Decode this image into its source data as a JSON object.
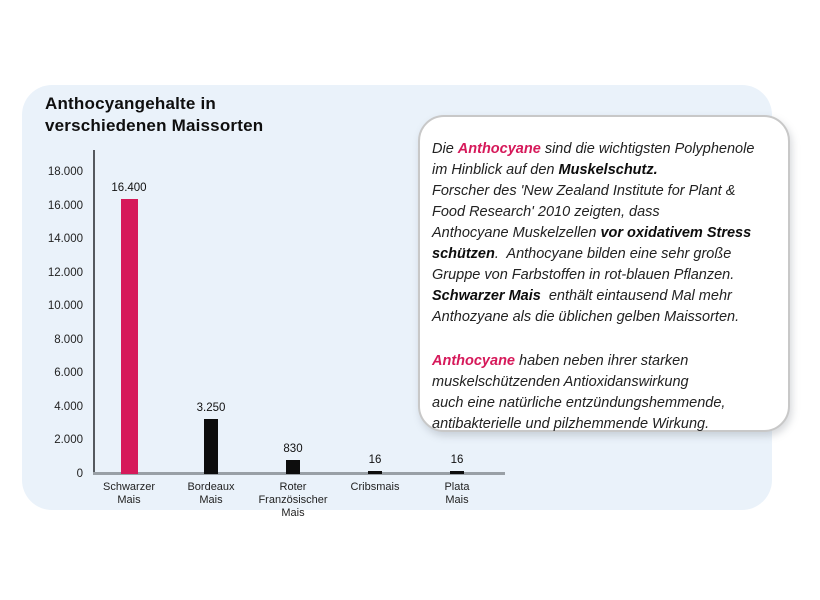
{
  "colors": {
    "accent": "#d6195a",
    "bar_black": "#0d0d0d",
    "panel_bg": "#eaf2fa",
    "axis_line": "#55595e",
    "baseline": "#99a0a6",
    "infobox_border": "#c8c8c8"
  },
  "chart_data": {
    "type": "bar",
    "title": "Anthocyangehalte in verschiedenen Maissorten",
    "title_lines": [
      "Anthocyangehalte in",
      "verschiedenen Maissorten"
    ],
    "categories": [
      [
        "Schwarzer",
        "Mais"
      ],
      [
        "Bordeaux",
        "Mais"
      ],
      [
        "Roter",
        "Französischer",
        "Mais"
      ],
      [
        "Cribsmais"
      ],
      [
        "Plata",
        "Mais"
      ]
    ],
    "values": [
      16400,
      3250,
      830,
      16,
      16
    ],
    "value_labels": [
      "16.400",
      "3.250",
      "830",
      "16",
      "16"
    ],
    "bar_colors": [
      "#d6195a",
      "#0d0d0d",
      "#0d0d0d",
      "#0d0d0d",
      "#0d0d0d"
    ],
    "ylim": [
      0,
      18000
    ],
    "yticks": [
      18000,
      16000,
      14000,
      12000,
      10000,
      8000,
      6000,
      4000,
      2000,
      0
    ],
    "ytick_labels": [
      "18.000",
      "16.000",
      "14.000",
      "12.000",
      "10.000",
      "8.000",
      "6.000",
      "4.000",
      "2.000",
      "0"
    ],
    "xlabel": "",
    "ylabel": "",
    "grid": false,
    "legend": false
  },
  "infobox": {
    "paragraphs": [
      {
        "lines": [
          [
            {
              "t": "Die "
            },
            {
              "t": "Anthocyane",
              "accent": true
            },
            {
              "t": " sind die wichtigsten Polyphenole"
            }
          ],
          [
            {
              "t": "im Hinblick auf den "
            },
            {
              "t": "Muskelschutz.",
              "b": true
            }
          ],
          [
            {
              "t": "Forscher des 'New Zealand Institute for Plant &"
            }
          ],
          [
            {
              "t": "Food Research' 2010 zeigten, dass"
            }
          ],
          [
            {
              "t": "Anthocyane Muskelzellen "
            },
            {
              "t": "vor oxidativem Stress",
              "b": true
            }
          ],
          [
            {
              "t": "schützen",
              "b": true
            },
            {
              "t": ".  Anthocyane bilden eine sehr große"
            }
          ],
          [
            {
              "t": "Gruppe von Farbstoffen in rot-blauen Pflanzen."
            }
          ],
          [
            {
              "t": "Schwarzer Mais",
              "b": true
            },
            {
              "t": "  enthält eintausend Mal mehr"
            }
          ],
          [
            {
              "t": "Anthozyane als die üblichen gelben Maissorten."
            }
          ]
        ]
      },
      {
        "lines": [
          [
            {
              "t": "Anthocyane",
              "accent": true
            },
            {
              "t": " haben neben ihrer starken"
            }
          ],
          [
            {
              "t": "muskelschützenden Antioxidanswirkung"
            }
          ],
          [
            {
              "t": "auch eine natürliche entzündungshemmende,"
            }
          ],
          [
            {
              "t": "antibakterielle und pilzhemmende Wirkung."
            }
          ]
        ]
      }
    ]
  }
}
